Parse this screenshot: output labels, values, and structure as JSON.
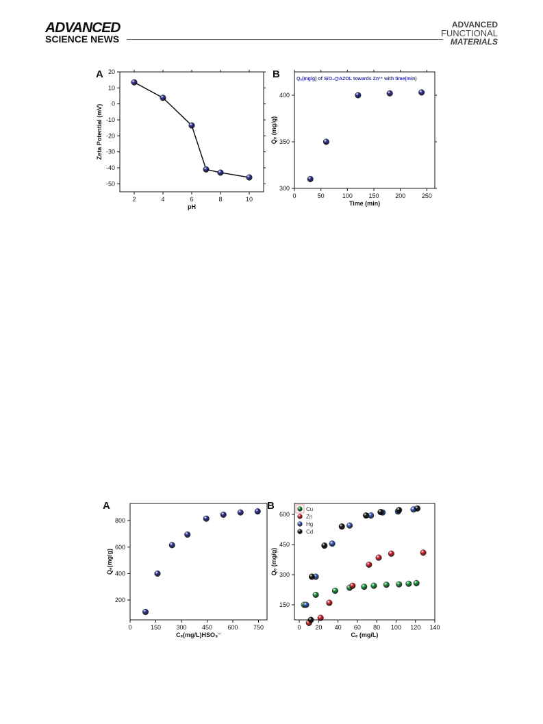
{
  "header": {
    "brand_left_line1": "ADVANCED",
    "brand_left_line2": "SCIENCE NEWS",
    "brand_right_line1": "ADVANCED",
    "brand_right_line2": "FUNCTIONAL",
    "brand_right_line3": "MATERIALS"
  },
  "colors": {
    "marker_blue": "#2e3192",
    "cu": "#1f9a3c",
    "zn": "#e0242a",
    "hg": "#3b5cc4",
    "cd": "#111111",
    "annotation": "#2d2da0"
  },
  "chart_data": [
    {
      "id": "fig-top-A",
      "panel_label": "A",
      "type": "line",
      "xlabel": "pH",
      "ylabel": "Zeta Potential (mV)",
      "xlim": [
        1,
        11
      ],
      "ylim": [
        -55,
        20
      ],
      "xticks": [
        2,
        4,
        6,
        8,
        10
      ],
      "yticks": [
        20,
        10,
        0,
        -10,
        -20,
        -30,
        -40,
        -50
      ],
      "series": [
        {
          "x": [
            2,
            4,
            6,
            7,
            8,
            10
          ],
          "y": [
            13.5,
            3.8,
            -13.5,
            -41,
            -43,
            -46
          ]
        }
      ]
    },
    {
      "id": "fig-top-B",
      "panel_label": "B",
      "type": "scatter",
      "annotation": "Qₑ(mg/g) of SiO₂@AZOL towards Zn²⁺ with time(min)",
      "xlabel": "Time (min)",
      "ylabel": "Qₑ (mg/g)",
      "xlim": [
        0,
        265
      ],
      "ylim": [
        300,
        425
      ],
      "xticks": [
        0,
        50,
        100,
        150,
        200,
        250
      ],
      "yticks": [
        300,
        350,
        400
      ],
      "series": [
        {
          "x": [
            30,
            60,
            120,
            180,
            240
          ],
          "y": [
            310,
            350,
            400,
            402,
            403
          ]
        }
      ]
    },
    {
      "id": "fig-bottom-A",
      "panel_label": "A",
      "type": "scatter",
      "xlabel": "Cₑ(mg/L)HSO₃⁻",
      "ylabel": "Qₑ(mg/g)",
      "xlim": [
        0,
        800
      ],
      "ylim": [
        50,
        930
      ],
      "xticks": [
        0,
        150,
        300,
        450,
        600,
        750
      ],
      "yticks": [
        200,
        400,
        600,
        800
      ],
      "series": [
        {
          "x": [
            90,
            160,
            245,
            335,
            445,
            545,
            645,
            745
          ],
          "y": [
            110,
            400,
            615,
            695,
            815,
            845,
            862,
            870
          ]
        }
      ]
    },
    {
      "id": "fig-bottom-B",
      "panel_label": "B",
      "type": "scatter",
      "xlabel": "Cₑ (mg/L)",
      "ylabel": "Qₑ (mg/g)",
      "xlim": [
        -5,
        140
      ],
      "ylim": [
        75,
        655
      ],
      "xticks": [
        0,
        20,
        40,
        60,
        80,
        100,
        120,
        140
      ],
      "yticks": [
        150,
        300,
        450,
        600
      ],
      "legend": "top-left",
      "series": [
        {
          "name": "Cu",
          "x": [
            5,
            17,
            37,
            52,
            67,
            77,
            90,
            103,
            113,
            121
          ],
          "y": [
            150,
            200,
            220,
            235,
            240,
            245,
            250,
            252,
            255,
            258
          ]
        },
        {
          "name": "Zn",
          "x": [
            10,
            22,
            31,
            55,
            72,
            82,
            95,
            128
          ],
          "y": [
            60,
            85,
            160,
            245,
            350,
            385,
            405,
            410
          ]
        },
        {
          "name": "Hg",
          "x": [
            7,
            17,
            34,
            52,
            74,
            86,
            102,
            118
          ],
          "y": [
            150,
            290,
            455,
            545,
            595,
            610,
            615,
            625
          ]
        },
        {
          "name": "Cd",
          "x": [
            12,
            13,
            26,
            44,
            69,
            84,
            103,
            122
          ],
          "y": [
            75,
            290,
            445,
            540,
            595,
            612,
            622,
            630
          ]
        }
      ]
    }
  ]
}
